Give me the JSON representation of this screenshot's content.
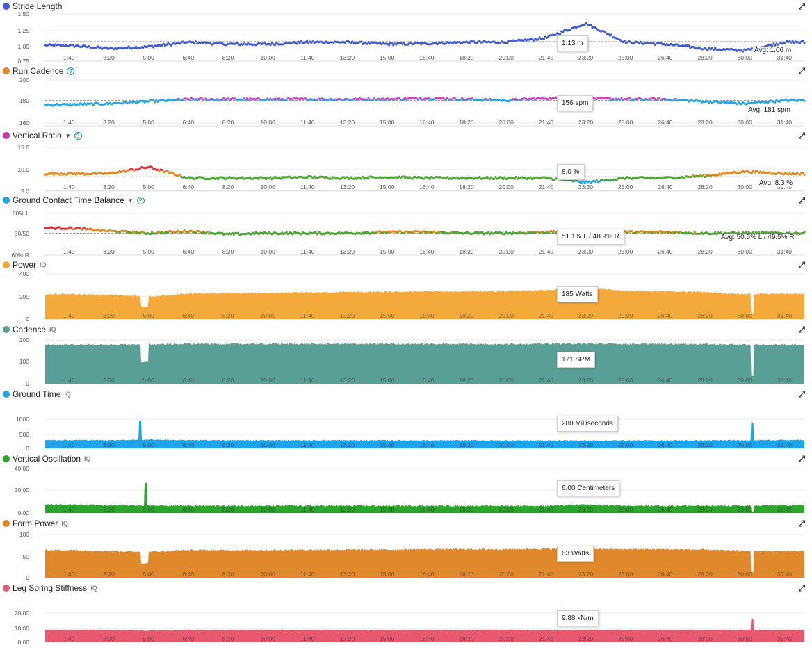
{
  "x_ticks": [
    "1:40",
    "3:20",
    "5:00",
    "6:40",
    "8:20",
    "10:00",
    "11:40",
    "13:20",
    "15:00",
    "16:40",
    "18:20",
    "20:00",
    "21:40",
    "23:20",
    "25:00",
    "26:40",
    "28:20",
    "30:00",
    "31:40"
  ],
  "expand_icon": "expand-icon",
  "panels": [
    {
      "id": "stride",
      "title": "Stride Length",
      "color": "#3f5bd1",
      "iq": "",
      "help": false,
      "caret": false,
      "y_ticks": [
        "1.50",
        "1.25",
        "1.00",
        "0.75"
      ],
      "tooltip": "1.13 m",
      "avg": "Avg: 1.06 m"
    },
    {
      "id": "runcad",
      "title": "Run Cadence",
      "color": "#e8841b",
      "iq": "",
      "help": true,
      "caret": false,
      "y_ticks": [
        "200",
        "180",
        "160"
      ],
      "tooltip": "156 spm",
      "avg": "Avg: 181 spm"
    },
    {
      "id": "vratio",
      "title": "Vertical Ratio",
      "color": "#cc2fb4",
      "iq": "",
      "help": true,
      "caret": true,
      "y_ticks": [
        "15.0",
        "10.0",
        "5.0"
      ],
      "tooltip": "8.0 %",
      "avg": "Avg: 8.3 %"
    },
    {
      "id": "gctb",
      "title": "Ground Contact Time Balance",
      "color": "#1fa0e0",
      "iq": "",
      "help": true,
      "caret": true,
      "y_ticks": [
        "60% L",
        "50/50",
        "60% R"
      ],
      "tooltip": "51.1% L / 48.9% R",
      "avg": "Avg: 50.5% L / 49.5% R"
    },
    {
      "id": "power",
      "title": "Power",
      "color": "#f4a93b",
      "iq": "IQ",
      "help": false,
      "caret": false,
      "y_ticks": [
        "400",
        "200",
        "0"
      ],
      "tooltip": "185 Watts",
      "avg": ""
    },
    {
      "id": "cadence",
      "title": "Cadence",
      "color": "#5a9f96",
      "iq": "IQ",
      "help": false,
      "caret": false,
      "y_ticks": [
        "200",
        "100",
        "0"
      ],
      "tooltip": "171 SPM",
      "avg": ""
    },
    {
      "id": "gtime",
      "title": "Ground Time",
      "color": "#20a4e8",
      "iq": "IQ",
      "help": false,
      "caret": false,
      "y_ticks": [
        "1000",
        "500",
        "0"
      ],
      "tooltip": "288 Milliseconds",
      "avg": ""
    },
    {
      "id": "vosc",
      "title": "Vertical Oscillation",
      "color": "#2ba52b",
      "iq": "IQ",
      "help": false,
      "caret": false,
      "y_ticks": [
        "40.00",
        "20.00",
        "0.00"
      ],
      "tooltip": "6.00 Centimeters",
      "avg": ""
    },
    {
      "id": "fpower",
      "title": "Form Power",
      "color": "#e0892c",
      "iq": "IQ",
      "help": false,
      "caret": false,
      "y_ticks": [
        "100",
        "50",
        "0"
      ],
      "tooltip": "63 Watts",
      "avg": ""
    },
    {
      "id": "lss",
      "title": "Leg Spring Stiffness",
      "color": "#e8586e",
      "iq": "IQ",
      "help": false,
      "caret": false,
      "y_ticks": [
        "20.00",
        "10.00",
        "0.00"
      ],
      "tooltip": "9.88 kN/m",
      "avg": ""
    }
  ],
  "chart_data": [
    {
      "type": "scatter",
      "title": "Stride Length",
      "ylim": [
        0.75,
        1.5
      ],
      "avg": 1.06,
      "unit": "m",
      "series": [
        {
          "name": "Stride Length",
          "x": [
            "1:40",
            "3:20",
            "5:00",
            "6:40",
            "8:20",
            "10:00",
            "11:40",
            "13:20",
            "15:00",
            "16:40",
            "18:20",
            "20:00",
            "21:40",
            "23:20",
            "25:00",
            "26:40",
            "28:20",
            "30:00",
            "31:40"
          ],
          "values": [
            1.0,
            0.95,
            0.98,
            1.05,
            1.02,
            1.02,
            1.05,
            1.05,
            1.02,
            1.03,
            1.05,
            1.05,
            1.12,
            1.35,
            1.05,
            1.02,
            0.95,
            0.92,
            1.05
          ]
        }
      ]
    },
    {
      "type": "scatter",
      "title": "Run Cadence",
      "ylim": [
        160,
        200
      ],
      "avg": 181,
      "unit": "spm",
      "series": [
        {
          "name": "Run Cadence",
          "x": [
            "1:40",
            "3:20",
            "5:00",
            "6:40",
            "8:20",
            "10:00",
            "11:40",
            "13:20",
            "15:00",
            "16:40",
            "18:20",
            "20:00",
            "21:40",
            "23:20",
            "25:00",
            "26:40",
            "28:20",
            "30:00",
            "31:40"
          ],
          "values": [
            177,
            178,
            180,
            182,
            182,
            182,
            182,
            182,
            182,
            183,
            182,
            181,
            183,
            183,
            182,
            182,
            180,
            178,
            181
          ]
        }
      ]
    },
    {
      "type": "scatter",
      "title": "Vertical Ratio",
      "ylim": [
        5,
        15
      ],
      "avg": 8.3,
      "unit": "%",
      "series": [
        {
          "name": "Vertical Ratio",
          "x": [
            "1:40",
            "3:20",
            "5:00",
            "6:40",
            "8:20",
            "10:00",
            "11:40",
            "13:20",
            "15:00",
            "16:40",
            "18:20",
            "20:00",
            "21:40",
            "23:20",
            "25:00",
            "26:40",
            "28:20",
            "30:00",
            "31:40"
          ],
          "values": [
            9.0,
            9.0,
            10.5,
            8.0,
            8.0,
            8.0,
            8.2,
            8.0,
            8.2,
            8.0,
            8.0,
            8.0,
            8.0,
            7.0,
            8.0,
            8.0,
            8.5,
            9.5,
            9.0
          ]
        }
      ]
    },
    {
      "type": "scatter",
      "title": "Ground Contact Time Balance",
      "ylim": [
        40,
        60
      ],
      "avg": 50.5,
      "unit": "% L",
      "series": [
        {
          "name": "Ground Contact Time Balance",
          "x": [
            "1:40",
            "3:20",
            "5:00",
            "6:40",
            "8:20",
            "10:00",
            "11:40",
            "13:20",
            "15:00",
            "16:40",
            "18:20",
            "20:00",
            "21:40",
            "23:20",
            "25:00",
            "26:40",
            "28:20",
            "30:00",
            "31:40"
          ],
          "values": [
            53,
            51.5,
            50.5,
            51.5,
            50,
            50.5,
            50.5,
            50.5,
            51,
            51,
            50.5,
            50.5,
            51,
            51,
            51,
            51,
            50.5,
            50.5,
            50.5
          ]
        }
      ]
    },
    {
      "type": "area",
      "title": "Power",
      "ylim": [
        0,
        400
      ],
      "unit": "Watts",
      "series": [
        {
          "name": "Power",
          "x": [
            "1:40",
            "3:20",
            "5:00",
            "6:40",
            "8:20",
            "10:00",
            "11:40",
            "13:20",
            "15:00",
            "16:40",
            "18:20",
            "20:00",
            "21:40",
            "23:20",
            "25:00",
            "26:40",
            "28:20",
            "30:00",
            "31:40"
          ],
          "values": [
            220,
            215,
            200,
            225,
            230,
            230,
            235,
            240,
            240,
            245,
            245,
            245,
            255,
            275,
            250,
            245,
            240,
            220,
            225
          ]
        }
      ]
    },
    {
      "type": "area",
      "title": "Cadence",
      "ylim": [
        0,
        200
      ],
      "unit": "SPM",
      "series": [
        {
          "name": "Cadence",
          "x": [
            "1:40",
            "3:20",
            "5:00",
            "6:40",
            "8:20",
            "10:00",
            "11:40",
            "13:20",
            "15:00",
            "16:40",
            "18:20",
            "20:00",
            "21:40",
            "23:20",
            "25:00",
            "26:40",
            "28:20",
            "30:00",
            "31:40"
          ],
          "values": [
            178,
            178,
            180,
            182,
            182,
            182,
            182,
            182,
            182,
            182,
            182,
            181,
            183,
            183,
            182,
            182,
            181,
            178,
            178
          ]
        }
      ]
    },
    {
      "type": "area",
      "title": "Ground Time",
      "ylim": [
        0,
        1000
      ],
      "unit": "Milliseconds",
      "series": [
        {
          "name": "Ground Time",
          "x": [
            "1:40",
            "3:20",
            "5:00",
            "6:40",
            "8:20",
            "10:00",
            "11:40",
            "13:20",
            "15:00",
            "16:40",
            "18:20",
            "20:00",
            "21:40",
            "23:20",
            "25:00",
            "26:40",
            "28:20",
            "30:00",
            "31:40"
          ],
          "values": [
            285,
            280,
            300,
            280,
            275,
            275,
            275,
            275,
            275,
            270,
            270,
            270,
            270,
            265,
            270,
            270,
            270,
            280,
            285
          ]
        }
      ]
    },
    {
      "type": "area",
      "title": "Vertical Oscillation",
      "ylim": [
        0,
        40
      ],
      "unit": "Centimeters",
      "series": [
        {
          "name": "Vertical Oscillation",
          "x": [
            "1:40",
            "3:20",
            "5:00",
            "6:40",
            "8:20",
            "10:00",
            "11:40",
            "13:20",
            "15:00",
            "16:40",
            "18:20",
            "20:00",
            "21:40",
            "23:20",
            "25:00",
            "26:40",
            "28:20",
            "30:00",
            "31:40"
          ],
          "values": [
            7.5,
            7.0,
            7.0,
            6.5,
            6.5,
            6.5,
            6.5,
            6.5,
            6.5,
            6.5,
            6.5,
            6.5,
            6.5,
            7.5,
            6.5,
            6.5,
            6.5,
            6.5,
            7.0
          ]
        }
      ]
    },
    {
      "type": "area",
      "title": "Form Power",
      "ylim": [
        0,
        100
      ],
      "unit": "Watts",
      "series": [
        {
          "name": "Form Power",
          "x": [
            "1:40",
            "3:20",
            "5:00",
            "6:40",
            "8:20",
            "10:00",
            "11:40",
            "13:20",
            "15:00",
            "16:40",
            "18:20",
            "20:00",
            "21:40",
            "23:20",
            "25:00",
            "26:40",
            "28:20",
            "30:00",
            "31:40"
          ],
          "values": [
            64,
            62,
            60,
            64,
            64,
            64,
            65,
            65,
            65,
            66,
            66,
            66,
            67,
            67,
            66,
            66,
            65,
            62,
            62
          ]
        }
      ]
    },
    {
      "type": "area",
      "title": "Leg Spring Stiffness",
      "ylim": [
        0,
        25
      ],
      "unit": "kN/m",
      "series": [
        {
          "name": "Leg Spring Stiffness",
          "x": [
            "1:40",
            "3:20",
            "5:00",
            "6:40",
            "8:20",
            "10:00",
            "11:40",
            "13:20",
            "15:00",
            "16:40",
            "18:20",
            "20:00",
            "21:40",
            "23:20",
            "25:00",
            "26:40",
            "28:20",
            "30:00",
            "31:40"
          ],
          "values": [
            10.5,
            10.5,
            10.0,
            10.5,
            10.5,
            10.5,
            10.5,
            10.5,
            10.5,
            10.5,
            10.5,
            10.5,
            10.5,
            10.5,
            10.5,
            10.5,
            10.5,
            10.5,
            10.5
          ]
        }
      ]
    }
  ]
}
